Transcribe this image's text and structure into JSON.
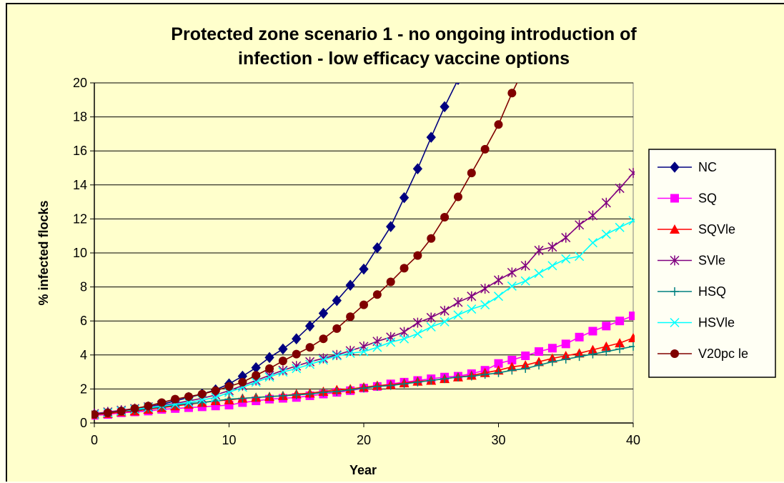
{
  "chart_data": {
    "type": "line",
    "title_lines": [
      "Protected zone scenario 1 - no ongoing introduction of",
      "infection - low efficacy vaccine options"
    ],
    "xlabel": "Year",
    "ylabel": "% infected flocks",
    "xlim": [
      0,
      40
    ],
    "ylim": [
      0,
      20
    ],
    "xticks": [
      0,
      10,
      20,
      30,
      40
    ],
    "yticks": [
      0,
      2,
      4,
      6,
      8,
      10,
      12,
      14,
      16,
      18,
      20
    ],
    "grid": "horizontal",
    "legend_position": "right",
    "series": [
      {
        "name": "NC",
        "color": "#000080",
        "marker": "diamond",
        "x": [
          0,
          1,
          2,
          3,
          4,
          5,
          6,
          7,
          8,
          9,
          10,
          11,
          12,
          13,
          14,
          15,
          16,
          17,
          18,
          19,
          20,
          21,
          22,
          23,
          24,
          25,
          26,
          27
        ],
        "y": [
          0.5,
          0.6,
          0.7,
          0.8,
          0.95,
          1.1,
          1.3,
          1.5,
          1.7,
          1.95,
          2.3,
          2.75,
          3.25,
          3.85,
          4.35,
          4.95,
          5.7,
          6.45,
          7.2,
          8.1,
          9.05,
          10.3,
          11.55,
          13.25,
          14.95,
          16.8,
          18.6,
          20.2
        ]
      },
      {
        "name": "SQ",
        "color": "#ff00ff",
        "marker": "square",
        "x": [
          0,
          1,
          2,
          3,
          4,
          5,
          6,
          7,
          8,
          9,
          10,
          11,
          12,
          13,
          14,
          15,
          16,
          17,
          18,
          19,
          20,
          21,
          22,
          23,
          24,
          25,
          26,
          27,
          28,
          29,
          30,
          31,
          32,
          33,
          34,
          35,
          36,
          37,
          38,
          39,
          40
        ],
        "y": [
          0.45,
          0.5,
          0.6,
          0.65,
          0.7,
          0.8,
          0.85,
          0.9,
          0.95,
          1.0,
          1.05,
          1.2,
          1.3,
          1.4,
          1.45,
          1.5,
          1.6,
          1.7,
          1.8,
          1.9,
          2.05,
          2.15,
          2.3,
          2.4,
          2.5,
          2.6,
          2.7,
          2.75,
          2.9,
          3.1,
          3.5,
          3.7,
          3.95,
          4.2,
          4.4,
          4.65,
          5.05,
          5.4,
          5.7,
          6.0,
          6.3
        ]
      },
      {
        "name": "SQVle",
        "color": "#ff0000",
        "marker": "triangle",
        "x": [
          0,
          1,
          2,
          3,
          4,
          5,
          6,
          7,
          8,
          9,
          10,
          11,
          12,
          13,
          14,
          15,
          16,
          17,
          18,
          19,
          20,
          21,
          22,
          23,
          24,
          25,
          26,
          27,
          28,
          29,
          30,
          31,
          32,
          33,
          34,
          35,
          36,
          37,
          38,
          39,
          40
        ],
        "y": [
          0.5,
          0.55,
          0.65,
          0.7,
          0.8,
          0.9,
          1.0,
          1.1,
          1.2,
          1.3,
          1.35,
          1.45,
          1.5,
          1.55,
          1.6,
          1.7,
          1.75,
          1.85,
          1.95,
          2.0,
          2.1,
          2.2,
          2.25,
          2.35,
          2.45,
          2.5,
          2.6,
          2.7,
          2.8,
          2.95,
          3.1,
          3.3,
          3.4,
          3.6,
          3.8,
          3.95,
          4.1,
          4.3,
          4.5,
          4.7,
          5.0
        ]
      },
      {
        "name": "SVle",
        "color": "#800080",
        "marker": "star",
        "x": [
          0,
          1,
          2,
          3,
          4,
          5,
          6,
          7,
          8,
          9,
          10,
          11,
          12,
          13,
          14,
          15,
          16,
          17,
          18,
          19,
          20,
          21,
          22,
          23,
          24,
          25,
          26,
          27,
          28,
          29,
          30,
          31,
          32,
          33,
          34,
          35,
          36,
          37,
          38,
          39,
          40
        ],
        "y": [
          0.55,
          0.65,
          0.75,
          0.85,
          0.95,
          1.05,
          1.15,
          1.3,
          1.45,
          1.65,
          1.9,
          2.2,
          2.5,
          2.8,
          3.1,
          3.35,
          3.6,
          3.8,
          4.0,
          4.25,
          4.5,
          4.8,
          5.05,
          5.35,
          5.9,
          6.2,
          6.6,
          7.1,
          7.45,
          7.9,
          8.4,
          8.85,
          9.25,
          10.15,
          10.35,
          10.9,
          11.65,
          12.2,
          12.95,
          13.8,
          14.7
        ]
      },
      {
        "name": "HSQ",
        "color": "#008080",
        "marker": "plus",
        "x": [
          0,
          1,
          2,
          3,
          4,
          5,
          6,
          7,
          8,
          9,
          10,
          11,
          12,
          13,
          14,
          15,
          16,
          17,
          18,
          19,
          20,
          21,
          22,
          23,
          24,
          25,
          26,
          27,
          28,
          29,
          30,
          31,
          32,
          33,
          34,
          35,
          36,
          37,
          38,
          39,
          40
        ],
        "y": [
          0.5,
          0.6,
          0.7,
          0.75,
          0.85,
          0.95,
          1.05,
          1.15,
          1.2,
          1.3,
          1.4,
          1.45,
          1.5,
          1.55,
          1.6,
          1.65,
          1.7,
          1.8,
          1.85,
          1.95,
          2.05,
          2.15,
          2.2,
          2.3,
          2.4,
          2.5,
          2.6,
          2.7,
          2.75,
          2.85,
          2.95,
          3.1,
          3.2,
          3.4,
          3.6,
          3.75,
          3.9,
          4.05,
          4.2,
          4.35,
          4.5
        ]
      },
      {
        "name": "HSVle",
        "color": "#00ffff",
        "marker": "x",
        "x": [
          0,
          1,
          2,
          3,
          4,
          5,
          6,
          7,
          8,
          9,
          10,
          11,
          12,
          13,
          14,
          15,
          16,
          17,
          18,
          19,
          20,
          21,
          22,
          23,
          24,
          25,
          26,
          27,
          28,
          29,
          30,
          31,
          32,
          33,
          34,
          35,
          36,
          37,
          38,
          39,
          40
        ],
        "y": [
          0.5,
          0.6,
          0.7,
          0.8,
          0.9,
          1.0,
          1.1,
          1.2,
          1.35,
          1.5,
          1.8,
          2.1,
          2.4,
          2.7,
          3.0,
          3.2,
          3.45,
          3.7,
          3.95,
          4.1,
          4.2,
          4.45,
          4.75,
          4.95,
          5.25,
          5.65,
          5.95,
          6.35,
          6.7,
          6.95,
          7.45,
          8.05,
          8.35,
          8.8,
          9.25,
          9.65,
          9.8,
          10.6,
          11.1,
          11.5,
          11.9
        ]
      },
      {
        "name": "V20pc le",
        "color": "#800000",
        "marker": "circle",
        "x": [
          0,
          1,
          2,
          3,
          4,
          5,
          6,
          7,
          8,
          9,
          10,
          11,
          12,
          13,
          14,
          15,
          16,
          17,
          18,
          19,
          20,
          21,
          22,
          23,
          24,
          25,
          26,
          27,
          28,
          29,
          30,
          31,
          32
        ],
        "y": [
          0.5,
          0.6,
          0.7,
          0.85,
          1.0,
          1.2,
          1.4,
          1.55,
          1.7,
          1.9,
          2.15,
          2.4,
          2.8,
          3.2,
          3.65,
          4.05,
          4.45,
          4.95,
          5.55,
          6.25,
          6.95,
          7.55,
          8.3,
          9.1,
          9.85,
          10.85,
          12.1,
          13.3,
          14.7,
          16.1,
          17.55,
          19.4,
          21.0
        ]
      }
    ]
  }
}
